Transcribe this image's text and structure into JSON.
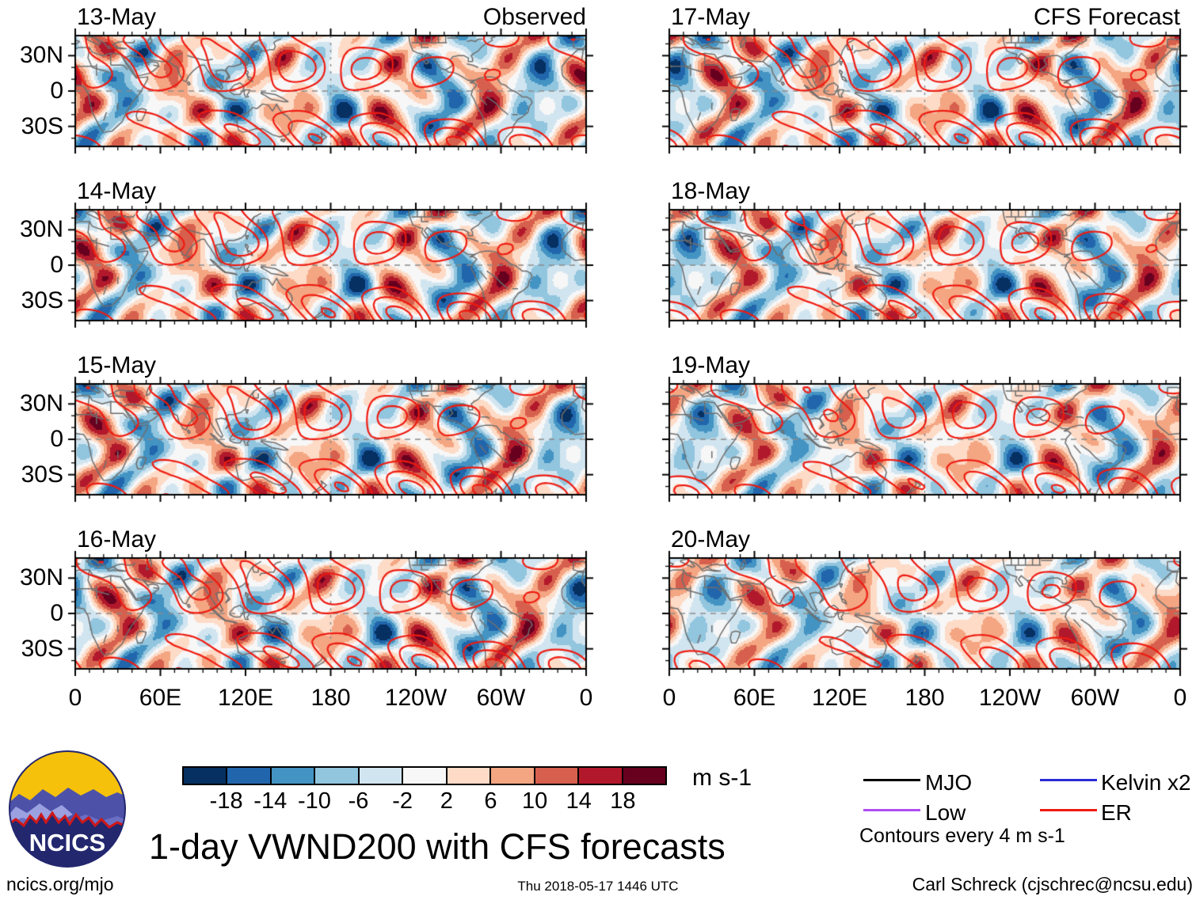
{
  "header": {
    "left_title": "Observed",
    "right_title": "CFS Forecast"
  },
  "panels": [
    {
      "date": "13-May"
    },
    {
      "date": "14-May"
    },
    {
      "date": "15-May"
    },
    {
      "date": "16-May"
    },
    {
      "date": "17-May"
    },
    {
      "date": "18-May"
    },
    {
      "date": "19-May"
    },
    {
      "date": "20-May"
    }
  ],
  "axes": {
    "lat_labels": [
      "30N",
      "0",
      "30S"
    ],
    "lon_labels": [
      "0",
      "60E",
      "120E",
      "180",
      "120W",
      "60W",
      "0"
    ]
  },
  "colorbar": {
    "tick_labels": [
      "-18",
      "-14",
      "-10",
      "-6",
      "-2",
      "2",
      "6",
      "10",
      "14",
      "18"
    ],
    "colors": [
      "#053061",
      "#2166ac",
      "#4393c3",
      "#92c5de",
      "#d1e5f0",
      "#f7f7f7",
      "#fddbc7",
      "#f4a582",
      "#d6604d",
      "#b2182b",
      "#67001f"
    ],
    "units": "m s-1"
  },
  "legend": {
    "items": [
      {
        "label": "MJO",
        "color": "#000000"
      },
      {
        "label": "Low",
        "color": "#b14cf2"
      },
      {
        "label": "Kelvin x2",
        "color": "#2a2ad6"
      },
      {
        "label": "ER",
        "color": "#ef1a10"
      }
    ],
    "note": "Contours every 4 m s-1"
  },
  "title": "1-day VWND200 with CFS forecasts",
  "logo_text": "NCICS",
  "footer": {
    "left": "ncics.org/mjo",
    "center": "Thu 2018-05-17 1446 UTC",
    "right": "Carl Schreck (cjschrec@ncsu.edu)"
  },
  "chart_data": {
    "type": "heatmap",
    "subtype": "filled-contour world maps, 2 columns x 4 rows",
    "title": "1-day VWND200 with CFS forecasts",
    "field": "VWND200",
    "columns": [
      {
        "label": "Observed",
        "dates": [
          "13-May",
          "14-May",
          "15-May",
          "16-May"
        ]
      },
      {
        "label": "CFS Forecast",
        "dates": [
          "17-May",
          "18-May",
          "19-May",
          "20-May"
        ]
      }
    ],
    "x_axis": {
      "tick_labels": [
        "0",
        "60E",
        "120E",
        "180",
        "120W",
        "60W",
        "0"
      ],
      "range_deg_lon": [
        0,
        360
      ],
      "minor_tick_deg": 10
    },
    "y_axis": {
      "tick_labels": [
        "30N",
        "0",
        "30S"
      ],
      "range_deg_lat": [
        -47,
        47
      ],
      "minor_tick_deg": 10
    },
    "colorbar": {
      "units": "m s-1",
      "boundaries": [
        -18,
        -14,
        -10,
        -6,
        -2,
        2,
        6,
        10,
        14,
        18
      ],
      "colors": [
        "#053061",
        "#2166ac",
        "#4393c3",
        "#92c5de",
        "#d1e5f0",
        "#f7f7f7",
        "#fddbc7",
        "#f4a582",
        "#d6604d",
        "#b2182b",
        "#67001f"
      ]
    },
    "contour_overlays": {
      "note": "Contours every 4 m s-1",
      "interval": 4,
      "positive_style": "solid",
      "negative_style": "dashed",
      "wave_types": [
        {
          "name": "MJO",
          "color": "#000000"
        },
        {
          "name": "Low",
          "color": "#b14cf2"
        },
        {
          "name": "Kelvin x2",
          "color": "#2a2ad6"
        },
        {
          "name": "ER",
          "color": "#ef1a10"
        }
      ]
    },
    "map_features": {
      "coastlines": "gray",
      "equator": "dashed gray",
      "dateline_180": "dashed gray"
    }
  }
}
